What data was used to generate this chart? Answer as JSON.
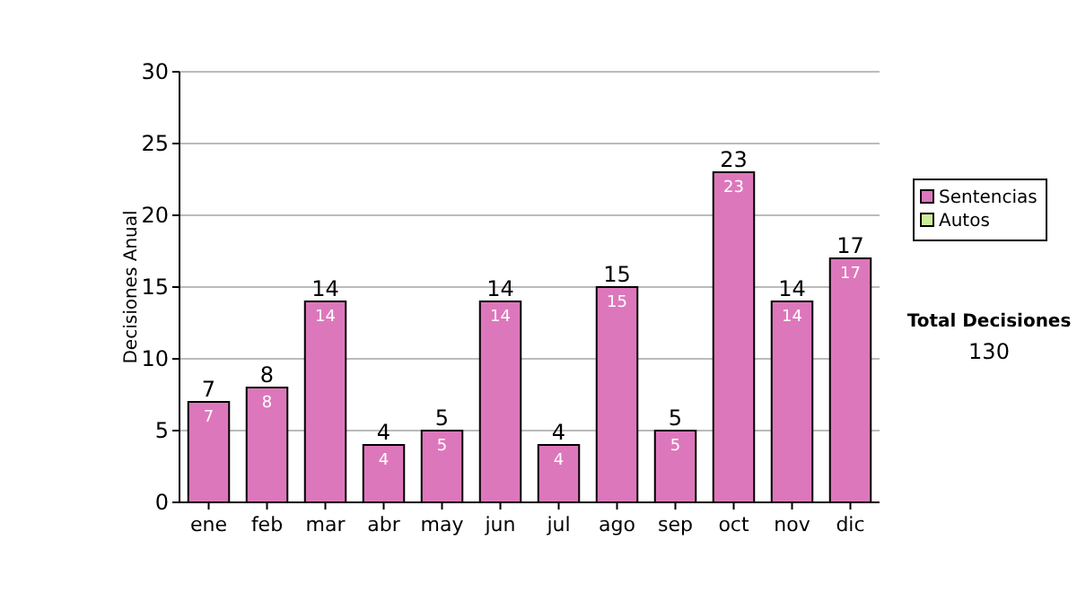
{
  "chart_data": {
    "type": "bar",
    "ylabel": "Decisiones Anual",
    "categories": [
      "ene",
      "feb",
      "mar",
      "abr",
      "may",
      "jun",
      "jul",
      "ago",
      "sep",
      "oct",
      "nov",
      "dic"
    ],
    "series": [
      {
        "name": "Sentencias",
        "color": "#dd77bb",
        "values": [
          7,
          8,
          14,
          4,
          5,
          14,
          4,
          15,
          5,
          23,
          14,
          17
        ],
        "value_labels": [
          "7",
          "8",
          "14",
          "4",
          "5",
          "14",
          "4",
          "15",
          "5",
          "23",
          "14",
          "17"
        ]
      },
      {
        "name": "Autos",
        "color": "#ccee99",
        "values": [
          0,
          0,
          0,
          0,
          0,
          0,
          0,
          0,
          0,
          0,
          0,
          0
        ]
      }
    ],
    "stacked": true,
    "totals": [
      "7",
      "8",
      "14",
      "4",
      "5",
      "14",
      "4",
      "15",
      "5",
      "23",
      "14",
      "17"
    ],
    "ylim": [
      0,
      30
    ],
    "yticks": [
      0,
      5,
      10,
      15,
      20,
      25,
      30
    ],
    "grid": "y",
    "legend": "right",
    "annotations": [
      "Total Decisiones",
      "130"
    ]
  }
}
